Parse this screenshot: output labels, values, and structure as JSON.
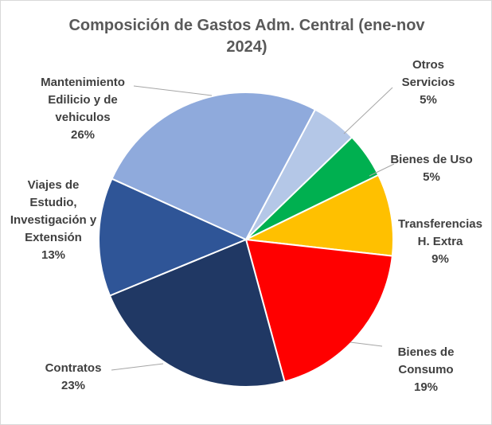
{
  "chart_data": {
    "type": "pie",
    "title": "Composición de Gastos Adm. Central (ene-nov 2024)",
    "slices": [
      {
        "label": "Otros Servicios",
        "value": 5,
        "value_label": "5%",
        "color": "#B4C7E7"
      },
      {
        "label": "Bienes de Uso",
        "value": 5,
        "value_label": "5%",
        "color": "#00B050"
      },
      {
        "label": "Transferencias H. Extra",
        "value": 9,
        "value_label": "9%",
        "color": "#FFC000"
      },
      {
        "label": "Bienes de Consumo",
        "value": 19,
        "value_label": "19%",
        "color": "#FF0000"
      },
      {
        "label": "Contratos",
        "value": 23,
        "value_label": "23%",
        "color": "#203864"
      },
      {
        "label": "Viajes de Estudio, Investigación y Extensión",
        "value": 13,
        "value_label": "13%",
        "color": "#2F5597"
      },
      {
        "label": "Mantenimiento Edilicio y de vehiculos",
        "value": 26,
        "value_label": "26%",
        "color": "#8FAADC"
      }
    ]
  }
}
